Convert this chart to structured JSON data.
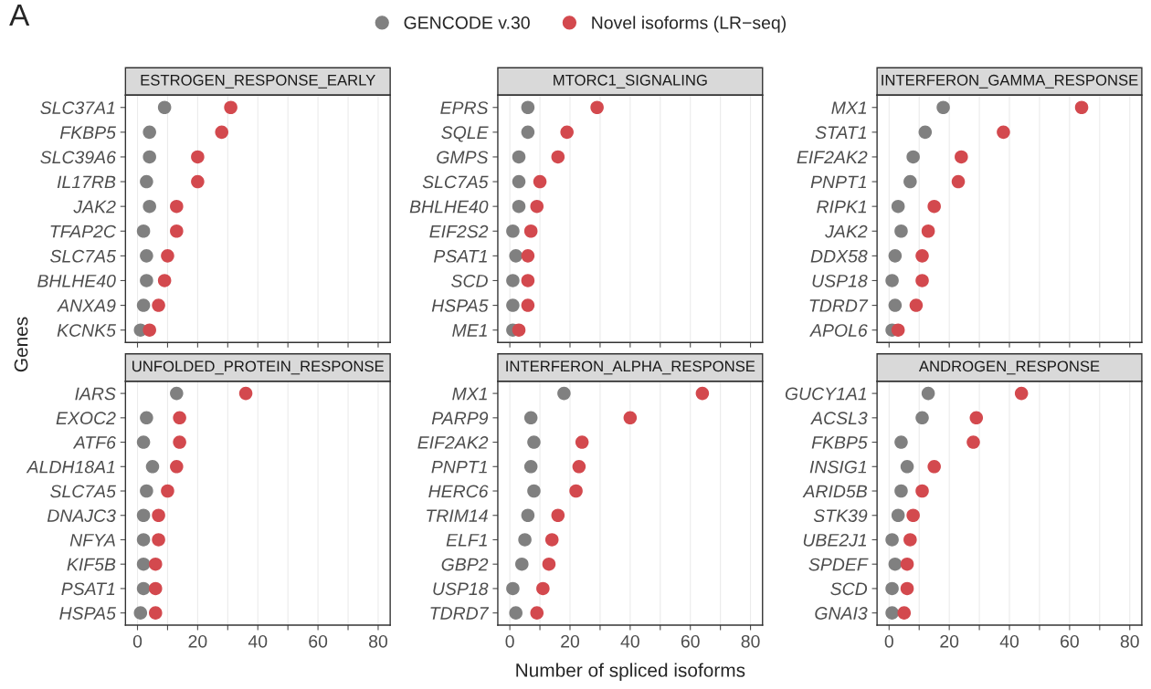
{
  "chart_data": [
    {
      "type": "scatter",
      "orientation": "horizontal",
      "title": "ESTROGEN_RESPONSE_EARLY",
      "ylabel": "Genes",
      "annotations": [
        "A"
      ],
      "legend": "top",
      "marker": "circle",
      "tick_labels": "y",
      "grid": "x",
      "categories": [
        "SLC37A1",
        "FKBP5",
        "SLC39A6",
        "IL17RB",
        "JAK2",
        "TFAP2C",
        "SLC7A5",
        "BHLHE40",
        "ANXA9",
        "KCNK5"
      ],
      "xlim": [
        -4,
        84
      ],
      "xticks": [
        0,
        {
          "value": 10,
          "label": null
        },
        20,
        {
          "value": 30,
          "label": null
        },
        40,
        {
          "value": 50,
          "label": null
        },
        60,
        {
          "value": 70,
          "label": null
        },
        80
      ],
      "series": [
        {
          "name": "GENCODE v.30",
          "color": "#808080",
          "values": [
            9,
            4,
            4,
            3,
            4,
            2,
            3,
            3,
            2,
            1
          ]
        },
        {
          "name": "Novel isoforms (LR−seq)",
          "color": "#d3494e",
          "values": [
            31,
            28,
            20,
            20,
            13,
            13,
            10,
            9,
            7,
            4
          ]
        }
      ]
    },
    {
      "type": "scatter",
      "orientation": "horizontal",
      "title": "MTORC1_SIGNALING",
      "marker": "circle",
      "tick_labels": "y",
      "grid": "x",
      "categories": [
        "EPRS",
        "SQLE",
        "GMPS",
        "SLC7A5",
        "BHLHE40",
        "EIF2S2",
        "PSAT1",
        "SCD",
        "HSPA5",
        "ME1"
      ],
      "xlim": [
        -4,
        84
      ],
      "xticks": [
        0,
        {
          "value": 10,
          "label": null
        },
        20,
        {
          "value": 30,
          "label": null
        },
        40,
        {
          "value": 50,
          "label": null
        },
        60,
        {
          "value": 70,
          "label": null
        },
        80
      ],
      "series": [
        {
          "color": "#808080",
          "values": [
            6,
            6,
            3,
            3,
            3,
            1,
            2,
            1,
            1,
            1
          ]
        },
        {
          "color": "#d3494e",
          "values": [
            29,
            19,
            16,
            10,
            9,
            7,
            6,
            6,
            6,
            3
          ]
        }
      ]
    },
    {
      "type": "scatter",
      "orientation": "horizontal",
      "title": "INTERFERON_GAMMA_RESPONSE",
      "marker": "circle",
      "tick_labels": "y",
      "grid": "x",
      "categories": [
        "MX1",
        "STAT1",
        "EIF2AK2",
        "PNPT1",
        "RIPK1",
        "JAK2",
        "DDX58",
        "USP18",
        "TDRD7",
        "APOL6"
      ],
      "xlim": [
        -4,
        84
      ],
      "xticks": [
        0,
        {
          "value": 10,
          "label": null
        },
        20,
        {
          "value": 30,
          "label": null
        },
        40,
        {
          "value": 50,
          "label": null
        },
        60,
        {
          "value": 70,
          "label": null
        },
        80
      ],
      "series": [
        {
          "color": "#808080",
          "values": [
            18,
            12,
            8,
            7,
            3,
            4,
            2,
            1,
            2,
            1
          ]
        },
        {
          "color": "#d3494e",
          "values": [
            64,
            38,
            24,
            23,
            15,
            13,
            11,
            11,
            9,
            3
          ]
        }
      ]
    },
    {
      "type": "scatter",
      "orientation": "horizontal",
      "title": "UNFOLDED_PROTEIN_RESPONSE",
      "marker": "circle",
      "grid": "x",
      "categories": [
        "IARS",
        "EXOC2",
        "ATF6",
        "ALDH18A1",
        "SLC7A5",
        "DNAJC3",
        "NFYA",
        "KIF5B",
        "PSAT1",
        "HSPA5"
      ],
      "xlim": [
        -4,
        84
      ],
      "xticks": [
        0,
        {
          "value": 10,
          "label": null
        },
        20,
        {
          "value": 30,
          "label": null
        },
        40,
        {
          "value": 50,
          "label": null
        },
        60,
        {
          "value": 70,
          "label": null
        },
        80
      ],
      "series": [
        {
          "color": "#808080",
          "values": [
            13,
            3,
            2,
            5,
            3,
            2,
            2,
            2,
            2,
            1
          ]
        },
        {
          "color": "#d3494e",
          "values": [
            36,
            14,
            14,
            13,
            10,
            7,
            7,
            6,
            6,
            6
          ]
        }
      ]
    },
    {
      "type": "scatter",
      "orientation": "horizontal",
      "title": "INTERFERON_ALPHA_RESPONSE",
      "xlabel": "Number of spliced isoforms",
      "marker": "circle",
      "grid": "x",
      "categories": [
        "MX1",
        "PARP9",
        "EIF2AK2",
        "PNPT1",
        "HERC6",
        "TRIM14",
        "ELF1",
        "GBP2",
        "USP18",
        "TDRD7"
      ],
      "xlim": [
        -4,
        84
      ],
      "xticks": [
        0,
        {
          "value": 10,
          "label": null
        },
        20,
        {
          "value": 30,
          "label": null
        },
        40,
        {
          "value": 50,
          "label": null
        },
        60,
        {
          "value": 70,
          "label": null
        },
        80
      ],
      "series": [
        {
          "color": "#808080",
          "values": [
            18,
            7,
            8,
            7,
            8,
            6,
            5,
            4,
            1,
            2
          ]
        },
        {
          "color": "#d3494e",
          "values": [
            64,
            40,
            24,
            23,
            22,
            16,
            14,
            13,
            11,
            9
          ]
        }
      ]
    },
    {
      "type": "scatter",
      "orientation": "horizontal",
      "title": "ANDROGEN_RESPONSE",
      "marker": "circle",
      "grid": "x",
      "categories": [
        "GUCY1A1",
        "ACSL3",
        "FKBP5",
        "INSIG1",
        "ARID5B",
        "STK39",
        "UBE2J1",
        "SPDEF",
        "SCD",
        "GNAI3"
      ],
      "xlim": [
        -4,
        84
      ],
      "xticks": [
        0,
        {
          "value": 10,
          "label": null
        },
        20,
        {
          "value": 30,
          "label": null
        },
        40,
        {
          "value": 50,
          "label": null
        },
        60,
        {
          "value": 70,
          "label": null
        },
        80
      ],
      "series": [
        {
          "color": "#808080",
          "values": [
            13,
            11,
            4,
            6,
            4,
            3,
            1,
            2,
            1,
            1
          ]
        },
        {
          "color": "#d3494e",
          "values": [
            44,
            29,
            28,
            15,
            11,
            8,
            7,
            6,
            6,
            5
          ]
        }
      ]
    }
  ]
}
